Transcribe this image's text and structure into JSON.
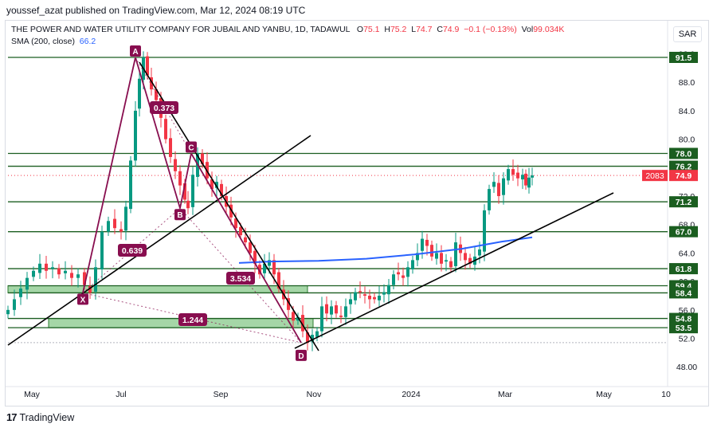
{
  "header": {
    "published_line": "youssef_azat published on TradingView.com, Mar 12, 2024 08:19 UTC"
  },
  "legend": {
    "symbol_line": "THE POWER AND WATER UTILITY COMPANY FOR JUBAIL AND YANBU, 1D, TADAWUL",
    "ohlc": {
      "O": "75.1",
      "H": "75.2",
      "L": "74.7",
      "C": "74.9",
      "change": "−0.1 (−0.13%)",
      "vol": "99.034K"
    },
    "ohlc_labels": {
      "O": "O",
      "H": "H",
      "L": "L",
      "C": "C",
      "vol": "Vol"
    },
    "sma_label": "SMA (200, close)",
    "sma_value": "66.2"
  },
  "currency_button": "SAR",
  "footer": {
    "logo": "17",
    "brand": "TradingView"
  },
  "colors": {
    "up": "#089981",
    "down": "#f23645",
    "level": "#1b5e20",
    "sma": "#2962ff",
    "pattern": "#880e4f",
    "zone": "#a5d6a7",
    "trend": "#000000"
  },
  "chart_data": {
    "type": "candlestick",
    "xaxis_ticks": [
      "May",
      "Jul",
      "Sep",
      "Nov",
      "2024",
      "Mar",
      "May",
      "10"
    ],
    "yaxis_ticks": [
      48.0,
      52.0,
      56.0,
      60.0,
      64.0,
      68.0,
      72.0,
      76.0,
      80.0,
      84.0,
      88.0,
      92.0
    ],
    "ylim": [
      45.6,
      93.5
    ],
    "horizontal_levels": [
      91.5,
      78.0,
      76.2,
      71.2,
      67.0,
      61.8,
      59.4,
      58.4,
      54.8,
      53.5
    ],
    "last_price": {
      "label": "2083",
      "value": 74.9
    },
    "sma": {
      "name": "SMA (200, close)",
      "last": 66.2
    },
    "xabcd_pattern": {
      "points": [
        {
          "name": "X",
          "price": 58.4
        },
        {
          "name": "A",
          "price": 91.5
        },
        {
          "name": "B",
          "price": 70.3
        },
        {
          "name": "C",
          "price": 78.0
        },
        {
          "name": "D",
          "price": 51.4
        }
      ],
      "ratios": [
        "0.373",
        "0.639",
        "3.534",
        "1.244"
      ]
    },
    "zones": [
      {
        "from": 58.4,
        "to": 59.4
      },
      {
        "from": 53.5,
        "to": 54.8
      }
    ],
    "price_path": [
      [
        0,
        56.0
      ],
      [
        8,
        57.5
      ],
      [
        16,
        59.0
      ],
      [
        24,
        60.5
      ],
      [
        32,
        61.5
      ],
      [
        40,
        62.5
      ],
      [
        48,
        61.5
      ],
      [
        56,
        62.0
      ],
      [
        64,
        61.0
      ],
      [
        72,
        61.5
      ],
      [
        80,
        60.5
      ],
      [
        88,
        61.0
      ],
      [
        96,
        59.5
      ],
      [
        103,
        58.4
      ],
      [
        110,
        62.0
      ],
      [
        118,
        67.0
      ],
      [
        126,
        68.5
      ],
      [
        134,
        67.5
      ],
      [
        142,
        67.0
      ],
      [
        148,
        70.5
      ],
      [
        154,
        77.0
      ],
      [
        160,
        84.0
      ],
      [
        165,
        88.5
      ],
      [
        170,
        91.5
      ],
      [
        175,
        89.0
      ],
      [
        180,
        87.0
      ],
      [
        186,
        85.5
      ],
      [
        192,
        83.0
      ],
      [
        198,
        80.0
      ],
      [
        204,
        77.5
      ],
      [
        210,
        75.5
      ],
      [
        216,
        73.5
      ],
      [
        222,
        71.5
      ],
      [
        226,
        70.3
      ],
      [
        232,
        75.0
      ],
      [
        238,
        78.0
      ],
      [
        244,
        76.5
      ],
      [
        250,
        74.5
      ],
      [
        256,
        73.0
      ],
      [
        262,
        74.0
      ],
      [
        268,
        72.0
      ],
      [
        274,
        70.5
      ],
      [
        280,
        69.0
      ],
      [
        286,
        67.5
      ],
      [
        292,
        66.5
      ],
      [
        298,
        65.5
      ],
      [
        304,
        64.0
      ],
      [
        310,
        62.5
      ],
      [
        316,
        61.0
      ],
      [
        322,
        62.5
      ],
      [
        328,
        63.0
      ],
      [
        334,
        61.0
      ],
      [
        340,
        59.0
      ],
      [
        346,
        57.5
      ],
      [
        352,
        56.0
      ],
      [
        358,
        54.5
      ],
      [
        364,
        55.0
      ],
      [
        370,
        53.0
      ],
      [
        376,
        51.4
      ],
      [
        382,
        52.5
      ],
      [
        388,
        53.0
      ],
      [
        394,
        56.5
      ],
      [
        400,
        55.5
      ],
      [
        406,
        56.5
      ],
      [
        412,
        55.5
      ],
      [
        418,
        55.0
      ],
      [
        424,
        56.5
      ],
      [
        430,
        57.5
      ],
      [
        436,
        58.5
      ],
      [
        442,
        58.5
      ],
      [
        448,
        58.0
      ],
      [
        454,
        57.5
      ],
      [
        460,
        57.5
      ],
      [
        466,
        58.0
      ],
      [
        472,
        58.5
      ],
      [
        478,
        59.5
      ],
      [
        484,
        61.0
      ],
      [
        490,
        61.0
      ],
      [
        496,
        60.5
      ],
      [
        502,
        62.0
      ],
      [
        508,
        63.0
      ],
      [
        514,
        64.0
      ],
      [
        520,
        66.0
      ],
      [
        526,
        65.0
      ],
      [
        532,
        63.5
      ],
      [
        538,
        64.0
      ],
      [
        544,
        62.5
      ],
      [
        550,
        63.0
      ],
      [
        556,
        62.0
      ],
      [
        562,
        65.5
      ],
      [
        568,
        64.0
      ],
      [
        574,
        63.0
      ],
      [
        580,
        62.5
      ],
      [
        586,
        63.5
      ],
      [
        592,
        64.5
      ],
      [
        598,
        70.0
      ],
      [
        604,
        73.0
      ],
      [
        610,
        74.0
      ],
      [
        616,
        72.0
      ],
      [
        622,
        74.5
      ],
      [
        628,
        75.8
      ],
      [
        634,
        75.0
      ],
      [
        640,
        74.5
      ],
      [
        646,
        75.0
      ],
      [
        650,
        73.5
      ],
      [
        654,
        74.6
      ],
      [
        658,
        74.9
      ]
    ]
  }
}
